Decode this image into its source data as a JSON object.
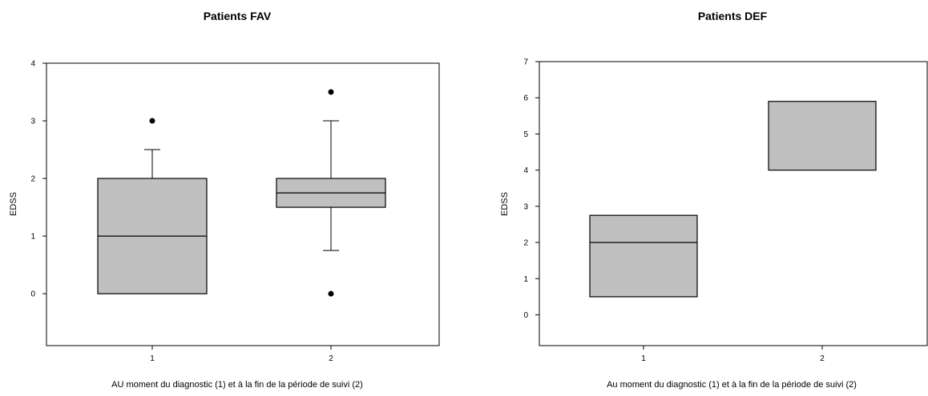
{
  "chart_data": [
    {
      "type": "box",
      "title": "Patients FAV",
      "xlabel": "AU moment du diagnostic (1) et à la fin de la période de suivi (2)",
      "ylabel": "EDSS",
      "categories": [
        "1",
        "2"
      ],
      "ylim": [
        -0.9,
        4
      ],
      "yticks": [
        "0",
        "1",
        "2",
        "3",
        "4"
      ],
      "box_color": "#c0c0c0",
      "boxes": [
        {
          "category": "1",
          "q1": 0,
          "median": 1,
          "q3": 2,
          "whisker_low": 0,
          "whisker_high": 2.5,
          "outliers": [
            3
          ]
        },
        {
          "category": "2",
          "q1": 1.5,
          "median": 1.75,
          "q3": 2,
          "whisker_low": 0.75,
          "whisker_high": 3,
          "outliers": [
            3.5,
            0
          ]
        }
      ]
    },
    {
      "type": "box",
      "title": "Patients DEF",
      "xlabel": "Au moment du diagnostic (1) et à la fin de la période de suivi (2)",
      "ylabel": "EDSS",
      "categories": [
        "1",
        "2"
      ],
      "ylim": [
        -0.85,
        7
      ],
      "yticks": [
        "0",
        "1",
        "2",
        "3",
        "4",
        "5",
        "6",
        "7"
      ],
      "box_color": "#c0c0c0",
      "boxes": [
        {
          "category": "1",
          "q1": 0.5,
          "median": 2,
          "q3": 2.75,
          "whisker_low": null,
          "whisker_high": null,
          "outliers": []
        },
        {
          "category": "2",
          "q1": 4,
          "median": null,
          "q3": 5.9,
          "whisker_low": null,
          "whisker_high": null,
          "outliers": []
        }
      ]
    }
  ]
}
